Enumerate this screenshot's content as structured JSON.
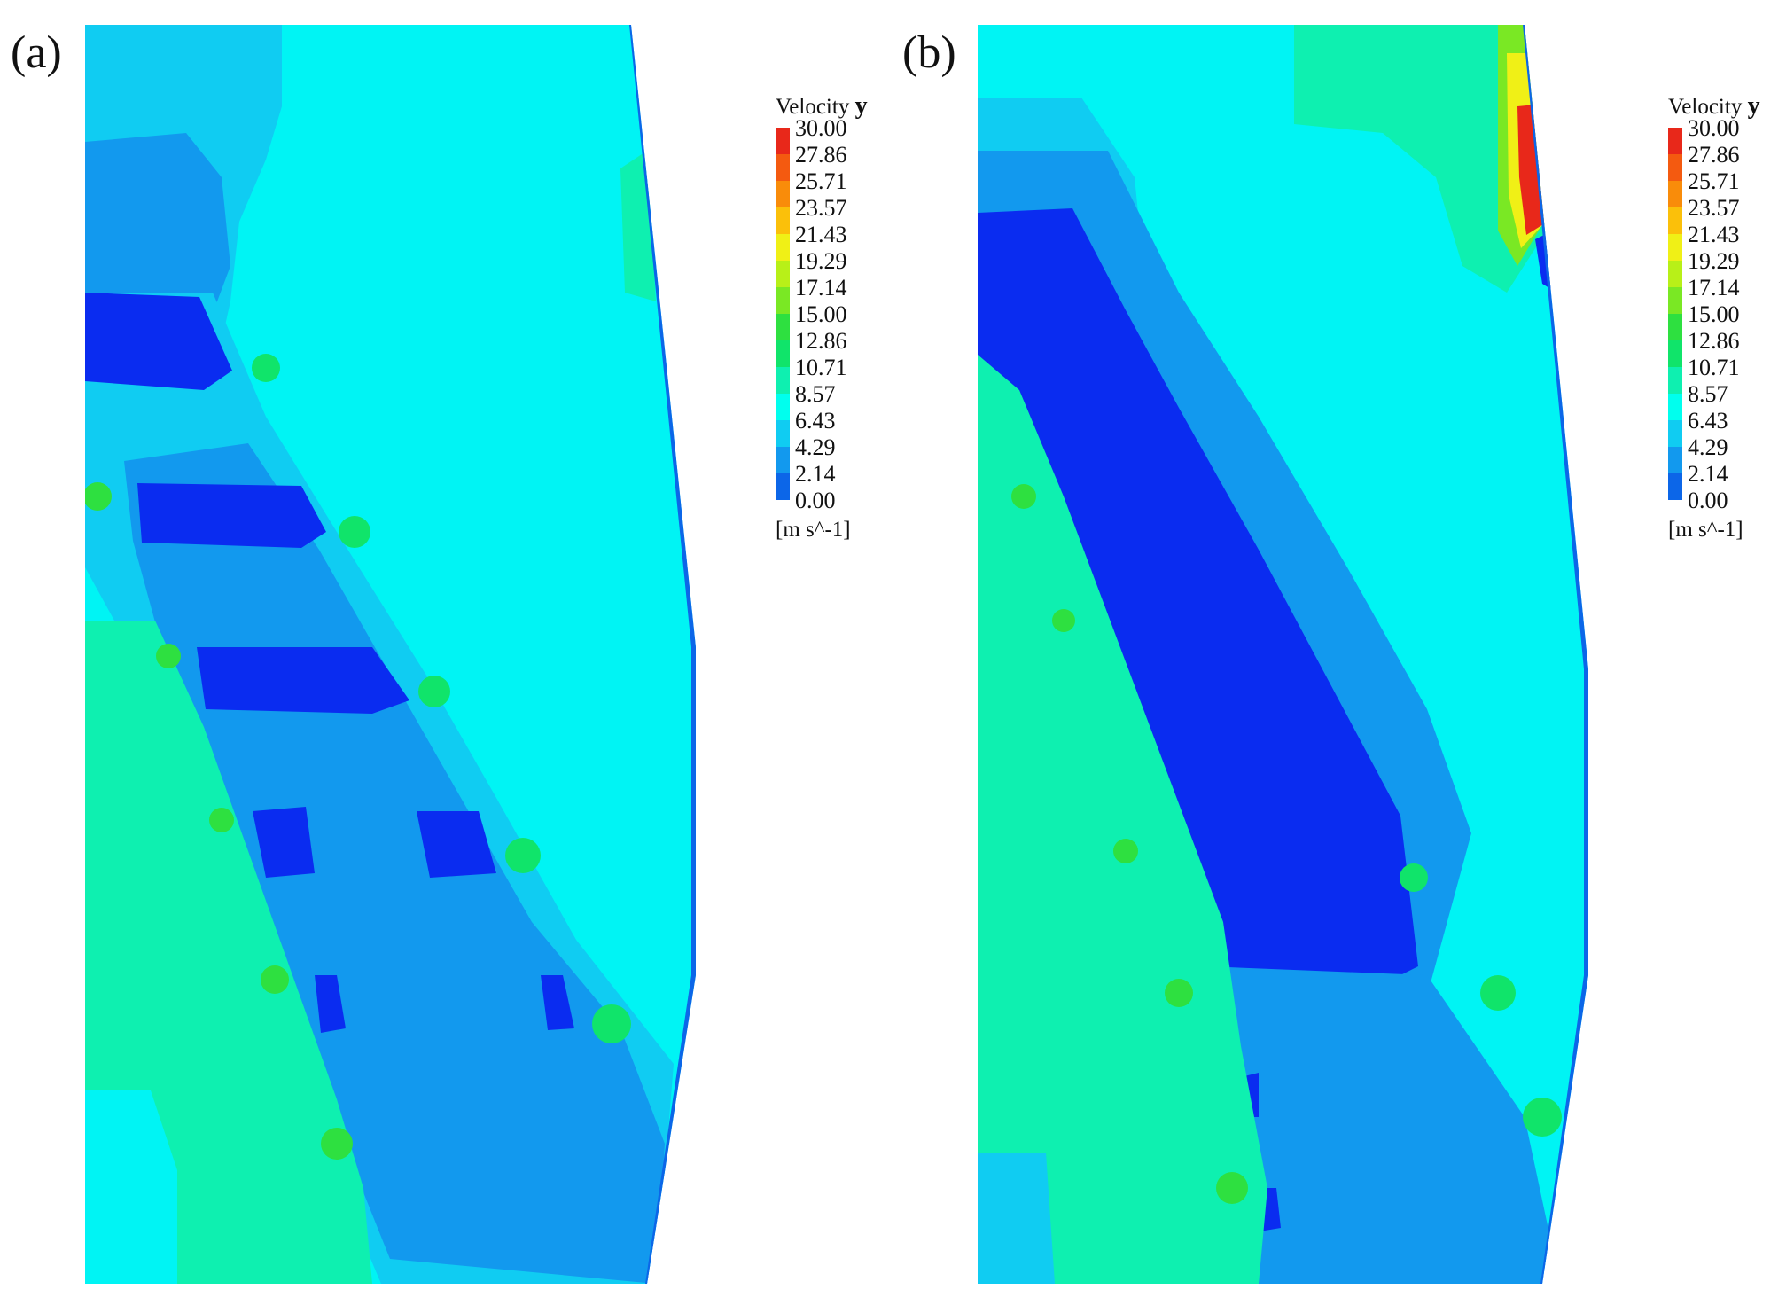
{
  "panels": [
    {
      "label": "(a)"
    },
    {
      "label": "(b)"
    }
  ],
  "legend": {
    "title": "Velocity",
    "component": "y",
    "unit": "[m s^-1]",
    "ticks": [
      "30.00",
      "27.86",
      "25.71",
      "23.57",
      "21.43",
      "19.29",
      "17.14",
      "15.00",
      "12.86",
      "10.71",
      "8.57",
      "6.43",
      "4.29",
      "2.14",
      "0.00"
    ],
    "colors": [
      "#e8281a",
      "#f45a10",
      "#f98c0a",
      "#fbc00a",
      "#f0f016",
      "#b8f018",
      "#7ae824",
      "#2ee040",
      "#10e46a",
      "#0ef0b0",
      "#00ffee",
      "#10ccf2",
      "#1299ee",
      "#0c66e8",
      "#0a2cf0"
    ]
  }
}
